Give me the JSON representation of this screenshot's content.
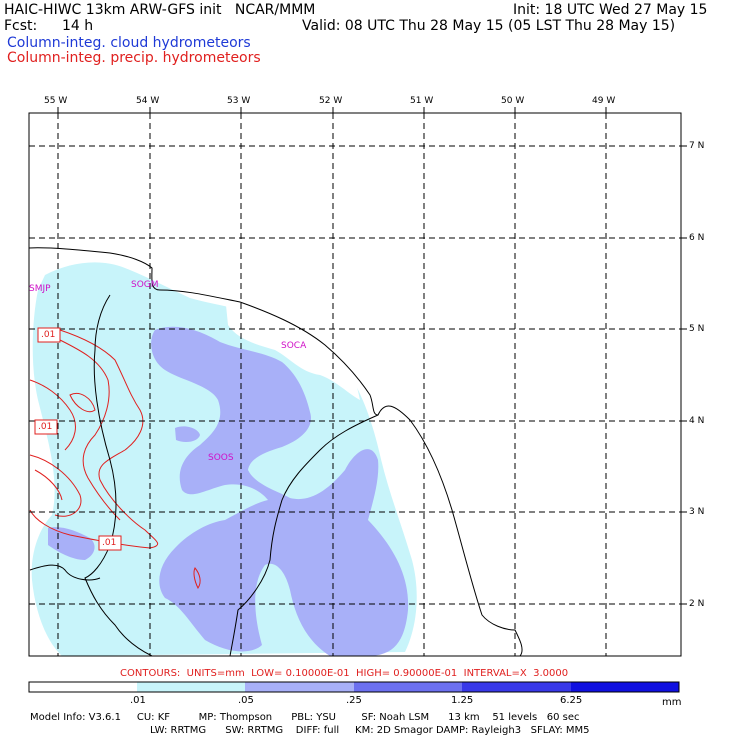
{
  "header": {
    "title_left": "HAIC-HIWC 13km ARW-GFS init   NCAR/MMM",
    "init": "Init: 18 UTC Wed 27 May 15",
    "fcst_label": "Fcst:",
    "fcst_value": "14 h",
    "valid": "Valid: 08 UTC Thu 28 May 15 (05 LST Thu 28 May 15)",
    "legend_cloud": "Column-integ. cloud hydrometeors",
    "legend_precip": "Column-integ. precip. hydrometeors",
    "legend_cloud_color": "#1f3ad6",
    "legend_precip_color": "#e0201f"
  },
  "map": {
    "lon_labels": [
      "55 W",
      "54 W",
      "53 W",
      "52 W",
      "51 W",
      "50 W",
      "49 W"
    ],
    "lat_labels": [
      "7 N",
      "6 N",
      "5 N",
      "4 N",
      "3 N",
      "2 N"
    ],
    "stations": [
      "SMJP",
      "SOGM",
      "SOCA",
      "SOOS"
    ],
    "station_color": "#d010c8",
    "contour_labels": [
      ".01",
      ".01",
      ".01"
    ],
    "contour_color": "#e0201f"
  },
  "contours_info": "CONTOURS:  UNITS=mm  LOW= 0.10000E-01  HIGH= 0.90000E-01  INTERVAL=X  3.0000",
  "colorbar": {
    "ticks": [
      ".01",
      ".05",
      ".25",
      "1.25",
      "6.25"
    ],
    "unit": "mm",
    "colors": [
      "#ffffff",
      "#c8f4fa",
      "#a8b0f8",
      "#6c70f0",
      "#3838e8",
      "#1010e0"
    ]
  },
  "footer": {
    "line1": "Model Info: V3.6.1     CU: KF         MP: Thompson      PBL: YSU        SF: Noah LSM      13 km    51 levels   60 sec",
    "line2": "LW: RRTMG      SW: RRTMG    DIFF: full     KM: 2D Smagor DAMP: Rayleigh3   SFLAY: MM5"
  }
}
